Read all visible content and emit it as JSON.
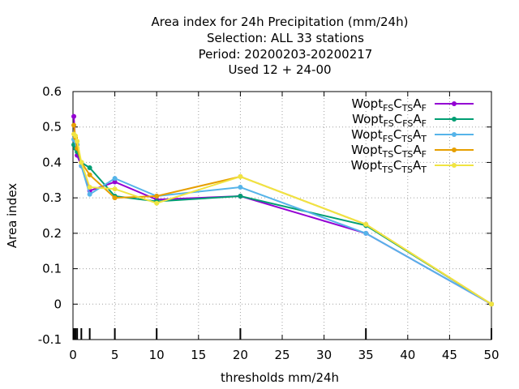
{
  "chart_data": {
    "type": "line",
    "title_lines": [
      "Area index  for 24h Precipitation (mm/24h)",
      "Selection: ALL     33 stations",
      "Period: 20200203-20200217",
      "Used  12 + 24-00"
    ],
    "xlabel": "thresholds mm/24h",
    "ylabel": "Area index",
    "xlim": [
      0,
      50
    ],
    "ylim": [
      -0.1,
      0.6
    ],
    "xticks": [
      0,
      5,
      10,
      15,
      20,
      25,
      30,
      35,
      40,
      45,
      50
    ],
    "yticks": [
      -0.1,
      0,
      0.1,
      0.2,
      0.3,
      0.4,
      0.5,
      0.6
    ],
    "ytick_labels": [
      "-0.1",
      "0",
      "0.1",
      "0.2",
      "0.3",
      "0.4",
      "0.5",
      "0.6"
    ],
    "grid": true,
    "legend_position": "top-right",
    "threshold_marks": [
      0.1,
      0.3,
      0.5,
      1,
      2,
      5,
      10,
      20,
      35,
      50
    ],
    "x": [
      0.1,
      0.3,
      0.5,
      1,
      2,
      5,
      10,
      20,
      35,
      50
    ],
    "series": [
      {
        "name": "Wopt_FS C_TS A_F",
        "legend": {
          "base": "Wopt",
          "sub1": "FS",
          "mid": "C",
          "sub2": "TS",
          "mid2": "A",
          "sub3": "F"
        },
        "color": "#9400d3",
        "values": [
          0.53,
          0.45,
          0.42,
          0.39,
          0.32,
          0.345,
          0.295,
          0.305,
          0.2,
          0.0
        ]
      },
      {
        "name": "Wopt_FS C_FS A_F",
        "legend": {
          "base": "Wopt",
          "sub1": "FS",
          "mid": "C",
          "sub2": "FS",
          "mid2": "A",
          "sub3": "F"
        },
        "color": "#009e73",
        "values": [
          0.45,
          0.44,
          0.43,
          0.4,
          0.385,
          0.305,
          0.29,
          0.305,
          0.222,
          0.0
        ]
      },
      {
        "name": "Wopt_FS C_TS A_T",
        "legend": {
          "base": "Wopt",
          "sub1": "FS",
          "mid": "C",
          "sub2": "TS",
          "mid2": "A",
          "sub3": "T"
        },
        "color": "#56b4e9",
        "values": [
          0.465,
          0.46,
          0.45,
          0.39,
          0.31,
          0.355,
          0.305,
          0.33,
          0.2,
          0.0
        ]
      },
      {
        "name": "Wopt_TS C_TS A_F",
        "legend": {
          "base": "Wopt",
          "sub1": "TS",
          "mid": "C",
          "sub2": "TS",
          "mid2": "A",
          "sub3": "F"
        },
        "color": "#e69f00",
        "values": [
          0.505,
          0.47,
          0.44,
          0.4,
          0.365,
          0.3,
          0.305,
          0.36,
          0.225,
          0.0
        ]
      },
      {
        "name": "Wopt_TS C_TS A_T",
        "legend": {
          "base": "Wopt",
          "sub1": "TS",
          "mid": "C",
          "sub2": "TS",
          "mid2": "A",
          "sub3": "T"
        },
        "color": "#f0e442",
        "values": [
          0.48,
          0.475,
          0.46,
          0.4,
          0.33,
          0.325,
          0.285,
          0.36,
          0.225,
          0.0
        ]
      }
    ]
  }
}
